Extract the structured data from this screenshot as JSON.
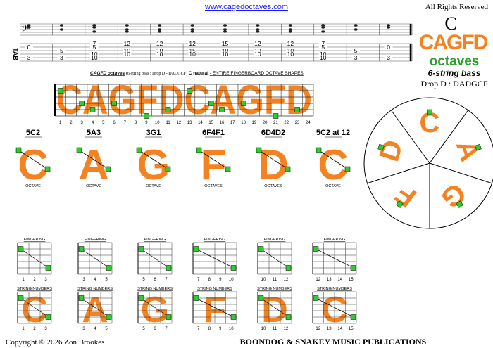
{
  "header": {
    "url": "www.cagedoctaves.com",
    "rights": "All Rights Reserved"
  },
  "logo": {
    "key": "C",
    "word": "CAGFD",
    "sub": "octaves",
    "instrument": "6-string bass",
    "tuning": "Drop D : DADGCF"
  },
  "tab": {
    "clef_label": "TAB",
    "columns": [
      [
        null,
        "0",
        null,
        null,
        "3",
        null
      ],
      [
        null,
        null,
        "5",
        null,
        "3",
        null
      ],
      [
        "7",
        "5",
        null,
        "10",
        "10",
        null
      ],
      [
        "12",
        null,
        "10",
        "10",
        null,
        null
      ],
      [
        "12",
        null,
        "10",
        "10",
        null,
        null
      ],
      [
        "12",
        null,
        "15",
        "10",
        null,
        null
      ],
      [
        "15",
        null,
        "10",
        "10",
        null,
        null
      ],
      [
        "12",
        null,
        "10",
        "10",
        null,
        null
      ],
      [
        "12",
        null,
        "10",
        "10",
        null,
        null
      ],
      [
        "7",
        "5",
        null,
        "10",
        "10",
        null
      ],
      [
        null,
        null,
        "5",
        null,
        "3",
        null
      ],
      [
        null,
        "0",
        null,
        null,
        "3",
        null
      ]
    ]
  },
  "fretboard": {
    "title": "CAGFD octaves",
    "subtitle": "(6-string bass : Drop D - DADGCF)",
    "key_label": "C natural",
    "caption": "- ENTIRE FINGERBOARD OCTAVE SHAPES",
    "letters": "CAGFDCAGFD",
    "frets": [
      "1",
      "2",
      "3",
      "4",
      "5",
      "6",
      "7",
      "8",
      "9",
      "10",
      "11",
      "12",
      "13",
      "14",
      "15",
      "16",
      "17",
      "18",
      "19",
      "20",
      "21",
      "22",
      "23",
      "24"
    ]
  },
  "shapes": [
    {
      "name": "5C2",
      "letter": "C",
      "sub": "OCTAVE"
    },
    {
      "name": "5A3",
      "letter": "A",
      "sub": "OCTAVE"
    },
    {
      "name": "3G1",
      "letter": "G",
      "sub": "OCTAVE"
    },
    {
      "name": "6F4F1",
      "letter": "F",
      "sub": "OCTAVES"
    },
    {
      "name": "6D4D2",
      "letter": "D",
      "sub": "OCTAVES"
    },
    {
      "name": "5C2 at 12",
      "letter": "C",
      "sub": "OCTAVE"
    }
  ],
  "wheel": [
    "C",
    "A",
    "G",
    "F",
    "D"
  ],
  "diagrams": [
    {
      "top": "FINGERING",
      "bottom": "STRING NUMBERS",
      "letter": "C",
      "frets": [
        "1",
        "2",
        "3"
      ]
    },
    {
      "top": "FINGERING",
      "bottom": "STRING NUMBERS",
      "letter": "A",
      "frets": [
        "3",
        "4",
        "5"
      ]
    },
    {
      "top": "FINGERING",
      "bottom": "STRING NUMBERS",
      "letter": "G",
      "frets": [
        "5",
        "6",
        "7"
      ]
    },
    {
      "top": "FINGERING",
      "bottom": "STRING NUMBERS",
      "letter": "F",
      "frets": [
        "7",
        "8",
        "9",
        "10"
      ]
    },
    {
      "top": "FINGERING",
      "bottom": "STRING NUMBERS",
      "letter": "D",
      "frets": [
        "10",
        "11",
        "12"
      ]
    },
    {
      "top": "FINGERING",
      "bottom": "STRING NUMBERS",
      "letter": "C",
      "frets": [
        "12",
        "13",
        "14",
        "15"
      ]
    }
  ],
  "footer": {
    "copyright": "Copyright © 2026  Zon Brookes",
    "publisher": "BOONDOG & SNAKEY MUSIC PUBLICATIONS"
  }
}
